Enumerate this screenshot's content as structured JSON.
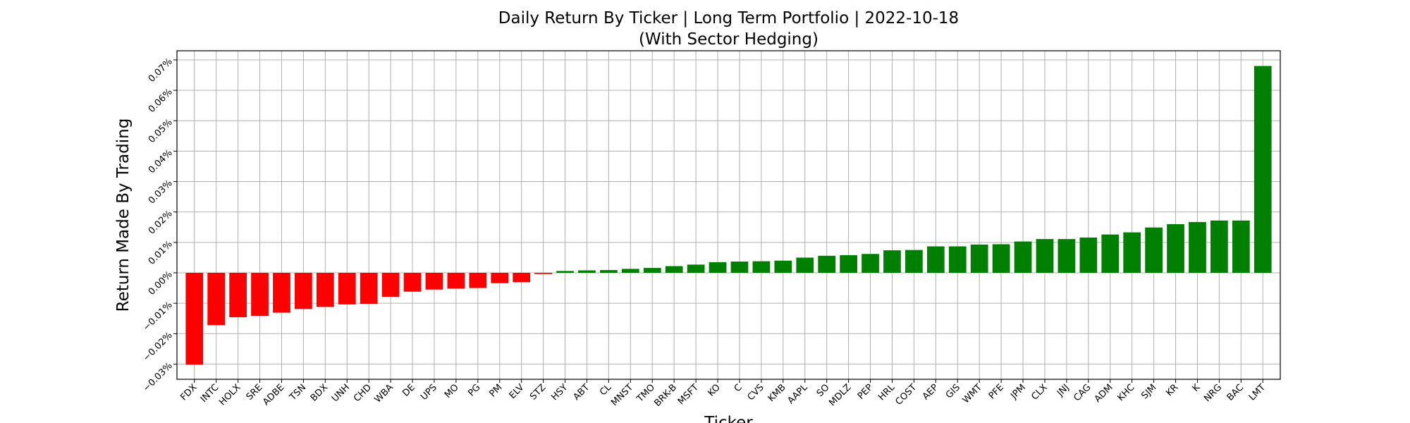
{
  "chart_data": {
    "type": "bar",
    "title": "Daily Return By Ticker | Long Term Portfolio | 2022-10-18",
    "subtitle": "(With Sector Hedging)",
    "xlabel": "Ticker",
    "ylabel": "Return Made By Trading",
    "ylim": [
      -0.035,
      0.073
    ],
    "yticks": [
      -0.03,
      -0.02,
      -0.01,
      0.0,
      0.01,
      0.02,
      0.03,
      0.04,
      0.05,
      0.06,
      0.07
    ],
    "ytick_labels": [
      "−0.03%",
      "−0.02%",
      "−0.01%",
      "0.00%",
      "0.01%",
      "0.02%",
      "0.03%",
      "0.04%",
      "0.05%",
      "0.06%",
      "0.07%"
    ],
    "grid": true,
    "colors": {
      "negative": "#ff0000",
      "positive": "#008000"
    },
    "categories": [
      "FDX",
      "INTC",
      "HOLX",
      "SRE",
      "ADBE",
      "TSN",
      "BDX",
      "UNH",
      "CHD",
      "WBA",
      "DE",
      "UPS",
      "MO",
      "PG",
      "PM",
      "ELV",
      "STZ",
      "HSY",
      "ABT",
      "CL",
      "MNST",
      "TMO",
      "BRK-B",
      "MSFT",
      "KO",
      "C",
      "CVS",
      "KMB",
      "AAPL",
      "SO",
      "MDLZ",
      "PEP",
      "HRL",
      "COST",
      "AEP",
      "GIS",
      "WMT",
      "PFE",
      "JPM",
      "CLX",
      "JNJ",
      "CAG",
      "ADM",
      "KHC",
      "SJM",
      "KR",
      "K",
      "NRG",
      "BAC",
      "LMT"
    ],
    "values": [
      -0.0302,
      -0.0172,
      -0.0146,
      -0.0142,
      -0.0131,
      -0.0119,
      -0.0112,
      -0.0104,
      -0.0102,
      -0.0079,
      -0.0062,
      -0.0055,
      -0.0052,
      -0.005,
      -0.0034,
      -0.0031,
      -0.0004,
      0.0006,
      0.0008,
      0.0009,
      0.0013,
      0.0016,
      0.0022,
      0.0027,
      0.0035,
      0.0037,
      0.0038,
      0.004,
      0.005,
      0.0056,
      0.0058,
      0.0062,
      0.0074,
      0.0075,
      0.0087,
      0.0087,
      0.0093,
      0.0094,
      0.0103,
      0.0111,
      0.0111,
      0.0116,
      0.0126,
      0.0133,
      0.0149,
      0.016,
      0.0167,
      0.0172,
      0.0172,
      0.068
    ]
  }
}
